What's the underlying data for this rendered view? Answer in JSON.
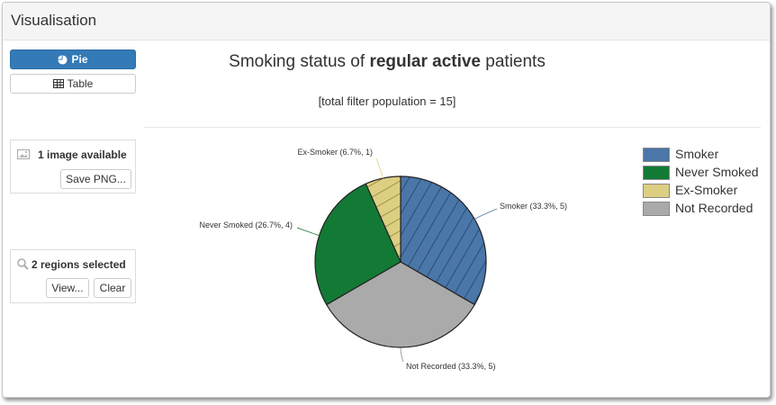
{
  "panel": {
    "title": "Visualisation"
  },
  "view_buttons": {
    "pie_label": "Pie",
    "table_label": "Table"
  },
  "image_box": {
    "status": "1 image available",
    "save_label": "Save PNG..."
  },
  "regions_box": {
    "status": "2 regions selected",
    "view_label": "View...",
    "clear_label": "Clear"
  },
  "chart_data": {
    "type": "pie",
    "title_parts": {
      "before": "Smoking status of ",
      "bold": "regular active",
      "after": " patients"
    },
    "subtitle": "[total filter population = 15]",
    "slices": [
      {
        "name": "Smoker",
        "label": "Smoker (33.3%, 5)",
        "value": 5,
        "percent": 33.3,
        "color": "#4a76a8",
        "hatched": true
      },
      {
        "name": "Not Recorded",
        "label": "Not Recorded (33.3%, 5)",
        "value": 5,
        "percent": 33.3,
        "color": "#aaaaaa",
        "hatched": false
      },
      {
        "name": "Never Smoked",
        "label": "Never Smoked (26.7%, 4)",
        "value": 4,
        "percent": 26.7,
        "color": "#137a35",
        "hatched": false
      },
      {
        "name": "Ex-Smoker",
        "label": "Ex-Smoker (6.7%, 1)",
        "value": 1,
        "percent": 6.7,
        "color": "#dccf82",
        "hatched": true
      }
    ],
    "legend": [
      {
        "label": "Smoker",
        "color": "#4a76a8"
      },
      {
        "label": "Never Smoked",
        "color": "#137a35"
      },
      {
        "label": "Ex-Smoker",
        "color": "#dccf82"
      },
      {
        "label": "Not Recorded",
        "color": "#aaaaaa"
      }
    ],
    "legend_position": "right"
  }
}
